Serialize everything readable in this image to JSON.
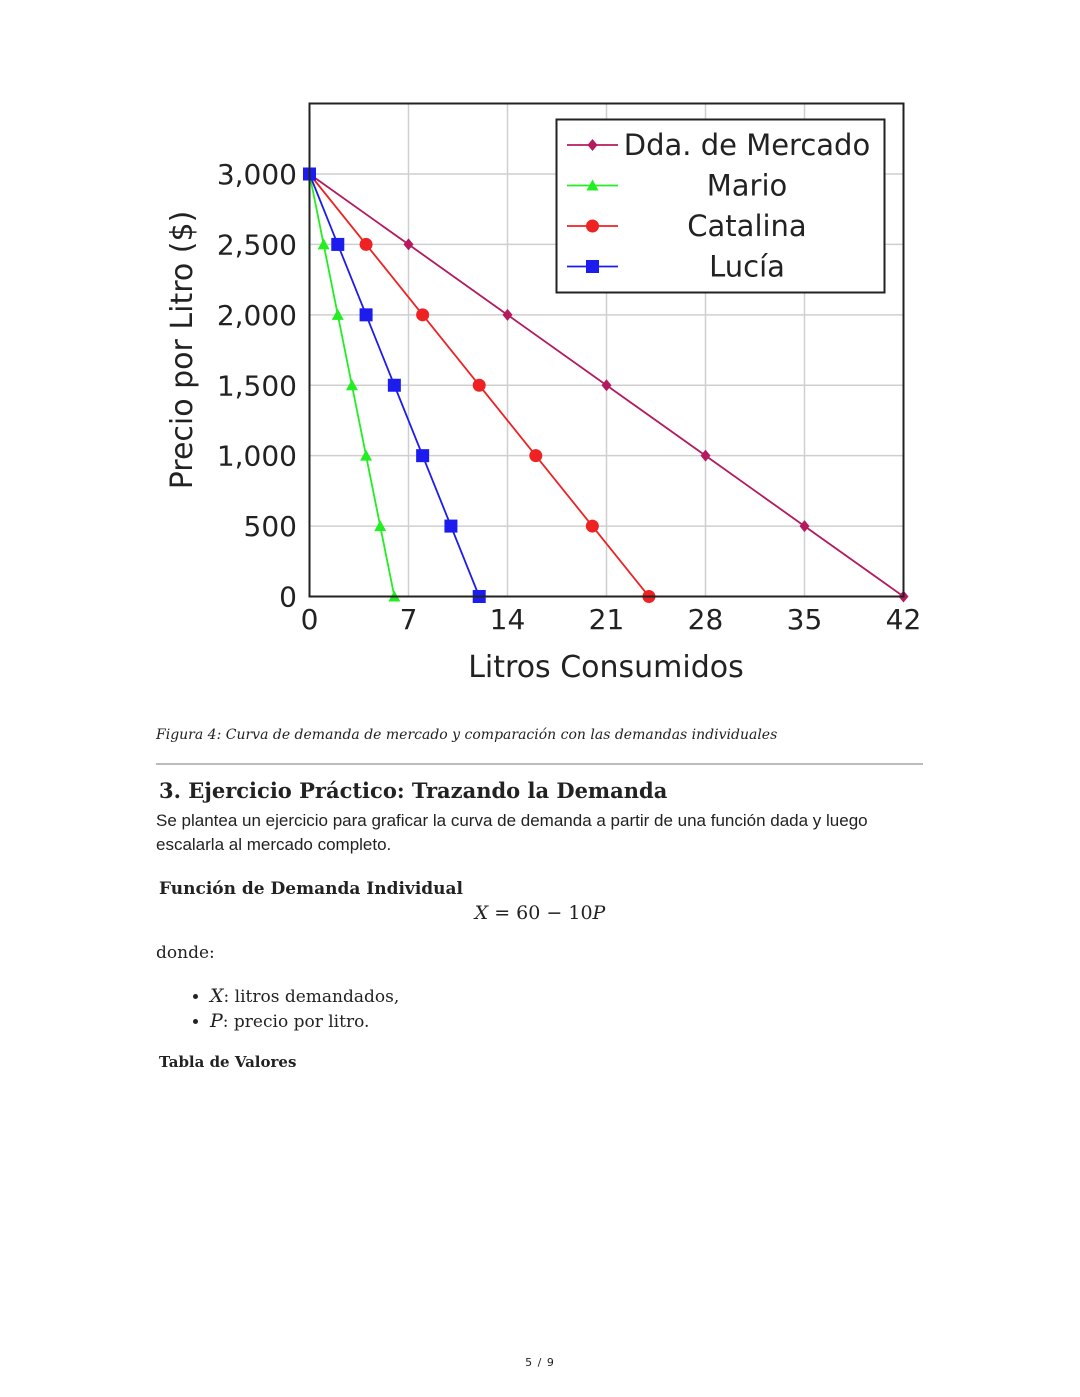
{
  "chart_data": {
    "type": "line",
    "xlabel": "Litros Consumidos",
    "ylabel": "Precio por Litro ($)",
    "xlim": [
      0,
      42
    ],
    "ylim": [
      0,
      3000
    ],
    "xticks": [
      0,
      7,
      14,
      21,
      28,
      35,
      42
    ],
    "yticks": [
      0,
      500,
      1000,
      1500,
      2000,
      2500,
      3000
    ],
    "ytick_labels": [
      "0",
      "500",
      "1,000",
      "1,500",
      "2,000",
      "2,500",
      "3,000"
    ],
    "grid": true,
    "legend_position": "top-right",
    "series": [
      {
        "name": "Dda. de Mercado",
        "color": "#b5195e",
        "marker": "diamond",
        "points": [
          [
            0,
            3000
          ],
          [
            7,
            2500
          ],
          [
            14,
            2000
          ],
          [
            21,
            1500
          ],
          [
            28,
            1000
          ],
          [
            35,
            500
          ],
          [
            42,
            0
          ]
        ]
      },
      {
        "name": "Mario",
        "color": "#22ee22",
        "marker": "triangle",
        "points": [
          [
            0,
            3000
          ],
          [
            1,
            2500
          ],
          [
            2,
            2000
          ],
          [
            3,
            1500
          ],
          [
            4,
            1000
          ],
          [
            5,
            500
          ],
          [
            6,
            0
          ]
        ]
      },
      {
        "name": "Catalina",
        "color": "#ee2222",
        "marker": "circle",
        "points": [
          [
            0,
            3000
          ],
          [
            4,
            2500
          ],
          [
            8,
            2000
          ],
          [
            12,
            1500
          ],
          [
            16,
            1000
          ],
          [
            20,
            500
          ],
          [
            24,
            0
          ]
        ]
      },
      {
        "name": "Lucía",
        "color": "#1c1cee",
        "marker": "square",
        "points": [
          [
            0,
            3000
          ],
          [
            2,
            2500
          ],
          [
            4,
            2000
          ],
          [
            6,
            1500
          ],
          [
            8,
            1000
          ],
          [
            10,
            500
          ],
          [
            12,
            0
          ]
        ]
      }
    ]
  },
  "caption": "Figura 4: Curva de demanda de mercado y comparación con las demandas individuales",
  "section": {
    "heading": "3. Ejercicio Práctico: Trazando la Demanda",
    "intro": "Se plantea un ejercicio para graficar la curva de demanda a partir de una función dada y luego escalarla al mercado completo.",
    "subheading": "Función de Demanda Individual",
    "equation": {
      "lhs": "X",
      "eq": " = 60 − 10",
      "var": "P"
    },
    "donde": "donde:",
    "vars": [
      {
        "sym": "X",
        "desc": ": litros demandados,"
      },
      {
        "sym": "P",
        "desc": ": precio por litro."
      }
    ],
    "table_heading": "Tabla de Valores"
  },
  "page_number": "5 / 9"
}
